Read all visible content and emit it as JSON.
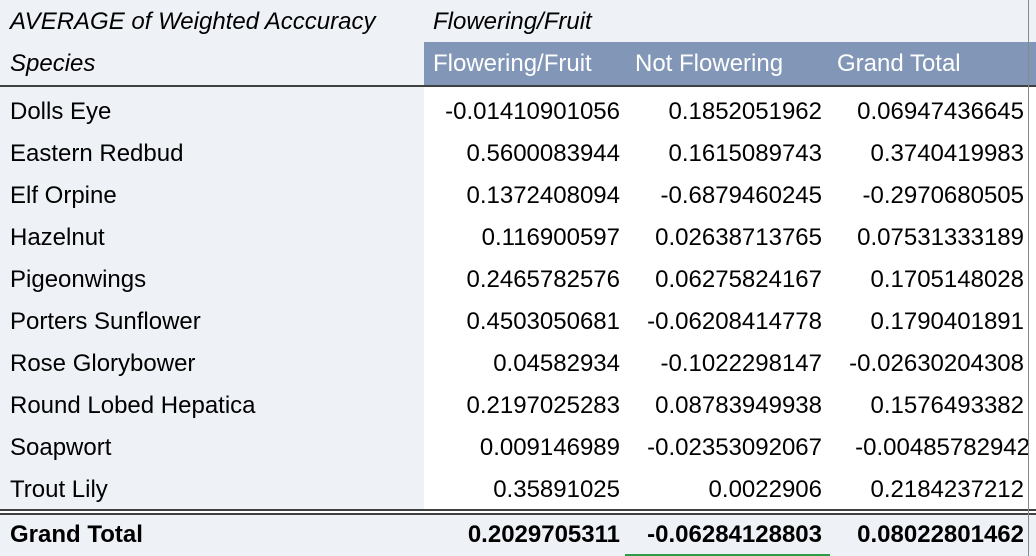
{
  "header": {
    "title": "AVERAGE of Weighted Acccuracy",
    "pivot_field": "Flowering/Fruit",
    "row_field": "Species",
    "columns": [
      "Flowering/Fruit",
      "Not Flowering",
      "Grand Total"
    ]
  },
  "rows": [
    {
      "species": "Dolls Eye",
      "flowering": "-0.01410901056",
      "not_flowering": "0.1852051962",
      "grand_total": "0.06947436645"
    },
    {
      "species": "Eastern Redbud",
      "flowering": "0.5600083944",
      "not_flowering": "0.1615089743",
      "grand_total": "0.3740419983"
    },
    {
      "species": "Elf Orpine",
      "flowering": "0.1372408094",
      "not_flowering": "-0.6879460245",
      "grand_total": "-0.2970680505"
    },
    {
      "species": "Hazelnut",
      "flowering": "0.116900597",
      "not_flowering": "0.02638713765",
      "grand_total": "0.07531333189"
    },
    {
      "species": "Pigeonwings",
      "flowering": "0.2465782576",
      "not_flowering": "0.06275824167",
      "grand_total": "0.1705148028"
    },
    {
      "species": "Porters Sunflower",
      "flowering": "0.4503050681",
      "not_flowering": "-0.06208414778",
      "grand_total": "0.1790401891"
    },
    {
      "species": "Rose Glorybower",
      "flowering": "0.04582934",
      "not_flowering": "-0.1022298147",
      "grand_total": "-0.02630204308"
    },
    {
      "species": "Round Lobed Hepatica",
      "flowering": "0.2197025283",
      "not_flowering": "0.08783949938",
      "grand_total": "0.1576493382"
    },
    {
      "species": "Soapwort",
      "flowering": "0.009146989",
      "not_flowering": "-0.02353092067",
      "grand_total": "-0.00485782942"
    },
    {
      "species": "Trout Lily",
      "flowering": "0.35891025",
      "not_flowering": "0.0022906",
      "grand_total": "0.2184237212"
    }
  ],
  "total": {
    "label": "Grand Total",
    "flowering": "0.2029705311",
    "not_flowering": "-0.06284128803",
    "grand_total": "0.08022801462"
  },
  "colors": {
    "header_bg": "#8297b7",
    "label_bg": "#eef1f5",
    "selection_underline": "#2e9b47"
  }
}
